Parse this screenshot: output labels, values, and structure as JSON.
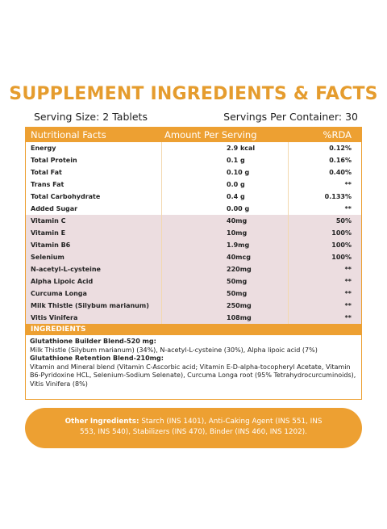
{
  "title": "SUPPLEMENT INGREDIENTS & FACTS",
  "serving_size": "Serving Size: 2 Tablets",
  "servings_per_container": "Servings Per Container: 30",
  "table": {
    "header": [
      "Nutritional Facts",
      "Amount Per Serving",
      "%RDA"
    ],
    "rows": [
      [
        "Energy",
        "2.9 kcal",
        "0.12%"
      ],
      [
        "Total Protein",
        "0.1 g",
        "0.16%"
      ],
      [
        "Total Fat",
        "0.10 g",
        "0.40%"
      ],
      [
        "Trans Fat",
        "0.0 g",
        "**"
      ],
      [
        "Total Carbohydrate",
        "0.4 g",
        "0.133%"
      ],
      [
        "Added Sugar",
        "0.00 g",
        "**"
      ],
      [
        "Vitamin C",
        "40mg",
        "50%"
      ],
      [
        "Vitamin E",
        "10mg",
        "100%"
      ],
      [
        "Vitamin B6",
        "1.9mg",
        "100%"
      ],
      [
        "Selenium",
        "40mcg",
        "100%"
      ],
      [
        "N-acetyl-L-cysteine",
        "220mg",
        "**"
      ],
      [
        "Alpha Lipoic Acid",
        "50mg",
        "**"
      ],
      [
        "Curcuma Longa",
        "50mg",
        "**"
      ],
      [
        "Milk Thistle (Silybum marianum)",
        "250mg",
        "**"
      ],
      [
        "Vitis Vinifera",
        "108mg",
        "**"
      ]
    ]
  },
  "ingredients": {
    "title": "INGREDIENTS",
    "blends": [
      {
        "name": "Glutathione Builder Blend-520 mg:",
        "text": "Milk Thistle (Silybum marianum) (34%), N-acetyl-L-cysteine (30%), Alpha lipoic acid (7%)"
      },
      {
        "name": "Glutathione Retention Blend-210mg:",
        "text": "Vitamin and Mineral blend (Vitamin C-Ascorbic acid; Vitamin E-D-alpha-tocopheryl Acetate, Vitamin B6-Pyridoxine HCL, Selenium-Sodium Selenate), Curcuma Longa root (95% Tetrahydrocurcuminoids), Vitis Vinifera (8%)"
      }
    ]
  },
  "other_ingredients": {
    "label": "Other Ingredients:",
    "text": "Starch (INS 1401), Anti-Caking Agent (INS 551, INS 553, INS 540), Stabilizers (INS 470), Binder (INS 460, INS 1202)."
  }
}
